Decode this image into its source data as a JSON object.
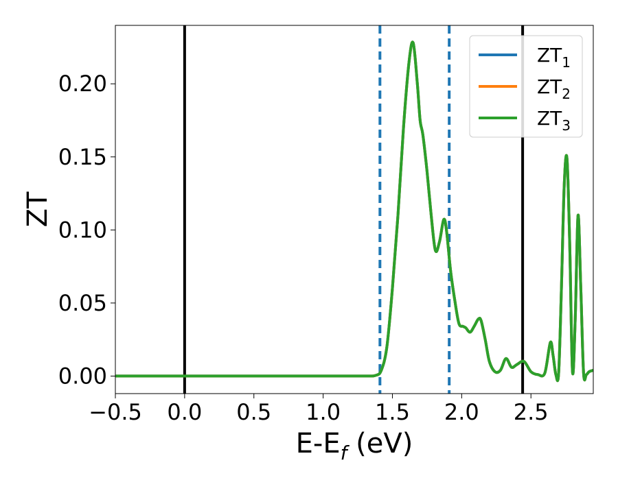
{
  "chart_data": {
    "type": "line",
    "xlabel": "E-E",
    "xlabel_sub": "f",
    "xlabel_unit": " (eV)",
    "ylabel": "ZT",
    "xlim": [
      -0.5,
      2.95
    ],
    "ylim": [
      -0.012,
      0.24
    ],
    "xticks": [
      -0.5,
      0.0,
      0.5,
      1.0,
      1.5,
      2.0,
      2.5
    ],
    "xtick_labels": [
      "−0.5",
      "0.0",
      "0.5",
      "1.0",
      "1.5",
      "2.0",
      "2.5"
    ],
    "yticks": [
      0.0,
      0.05,
      0.1,
      0.15,
      0.2
    ],
    "ytick_labels": [
      "0.00",
      "0.05",
      "0.10",
      "0.15",
      "0.20"
    ],
    "grid": false,
    "legend_position": "top-right",
    "vlines": [
      {
        "x": 0.0,
        "style": "solid",
        "color": "#000000"
      },
      {
        "x": 2.44,
        "style": "solid",
        "color": "#000000"
      },
      {
        "x": 1.41,
        "style": "dashed",
        "color": "#1f77b4"
      },
      {
        "x": 1.91,
        "style": "dashed",
        "color": "#1f77b4"
      }
    ],
    "x": [
      -0.5,
      0.0,
      0.5,
      1.0,
      1.3,
      1.38,
      1.42,
      1.46,
      1.5,
      1.54,
      1.58,
      1.62,
      1.65,
      1.68,
      1.7,
      1.72,
      1.75,
      1.78,
      1.81,
      1.84,
      1.87,
      1.89,
      1.92,
      1.95,
      1.98,
      2.01,
      2.03,
      2.06,
      2.09,
      2.12,
      2.14,
      2.17,
      2.2,
      2.24,
      2.28,
      2.32,
      2.36,
      2.4,
      2.45,
      2.5,
      2.55,
      2.6,
      2.64,
      2.66,
      2.68,
      2.7,
      2.72,
      2.74,
      2.76,
      2.78,
      2.8,
      2.82,
      2.84,
      2.86,
      2.88,
      2.9,
      2.92,
      2.95
    ],
    "series": [
      {
        "name": "ZT",
        "name_sub": "1",
        "color": "#1f77b4",
        "values": [
          0,
          0,
          0,
          0,
          0,
          0.0005,
          0.004,
          0.02,
          0.06,
          0.11,
          0.17,
          0.215,
          0.228,
          0.2,
          0.175,
          0.165,
          0.14,
          0.11,
          0.086,
          0.092,
          0.107,
          0.1,
          0.072,
          0.052,
          0.036,
          0.034,
          0.033,
          0.03,
          0.034,
          0.039,
          0.038,
          0.025,
          0.01,
          0.003,
          0.004,
          0.012,
          0.006,
          0.008,
          0.01,
          0.003,
          0.001,
          0.002,
          0.023,
          0.014,
          0.001,
          0.002,
          0.06,
          0.13,
          0.149,
          0.09,
          0.003,
          0.04,
          0.11,
          0.06,
          0.002,
          0.001,
          0.003,
          0.004
        ]
      },
      {
        "name": "ZT",
        "name_sub": "2",
        "color": "#ff7f0e",
        "values": [
          0,
          0,
          0,
          0,
          0,
          0.0005,
          0.004,
          0.02,
          0.06,
          0.11,
          0.17,
          0.215,
          0.228,
          0.2,
          0.175,
          0.165,
          0.14,
          0.11,
          0.086,
          0.092,
          0.107,
          0.1,
          0.072,
          0.052,
          0.036,
          0.034,
          0.033,
          0.03,
          0.034,
          0.039,
          0.038,
          0.025,
          0.01,
          0.003,
          0.004,
          0.012,
          0.006,
          0.008,
          0.01,
          0.003,
          0.001,
          0.002,
          0.023,
          0.014,
          0.001,
          0.002,
          0.06,
          0.13,
          0.149,
          0.09,
          0.003,
          0.04,
          0.11,
          0.06,
          0.002,
          0.001,
          0.003,
          0.004
        ]
      },
      {
        "name": "ZT",
        "name_sub": "3",
        "color": "#2ca02c",
        "values": [
          0,
          0,
          0,
          0,
          0,
          0.0005,
          0.004,
          0.02,
          0.06,
          0.11,
          0.17,
          0.215,
          0.228,
          0.2,
          0.175,
          0.165,
          0.14,
          0.11,
          0.086,
          0.092,
          0.107,
          0.1,
          0.072,
          0.052,
          0.036,
          0.034,
          0.033,
          0.03,
          0.034,
          0.039,
          0.038,
          0.025,
          0.01,
          0.003,
          0.004,
          0.012,
          0.006,
          0.008,
          0.01,
          0.003,
          0.001,
          0.002,
          0.023,
          0.014,
          0.001,
          0.002,
          0.06,
          0.13,
          0.149,
          0.09,
          0.003,
          0.04,
          0.11,
          0.06,
          0.002,
          0.001,
          0.003,
          0.004
        ]
      }
    ]
  }
}
